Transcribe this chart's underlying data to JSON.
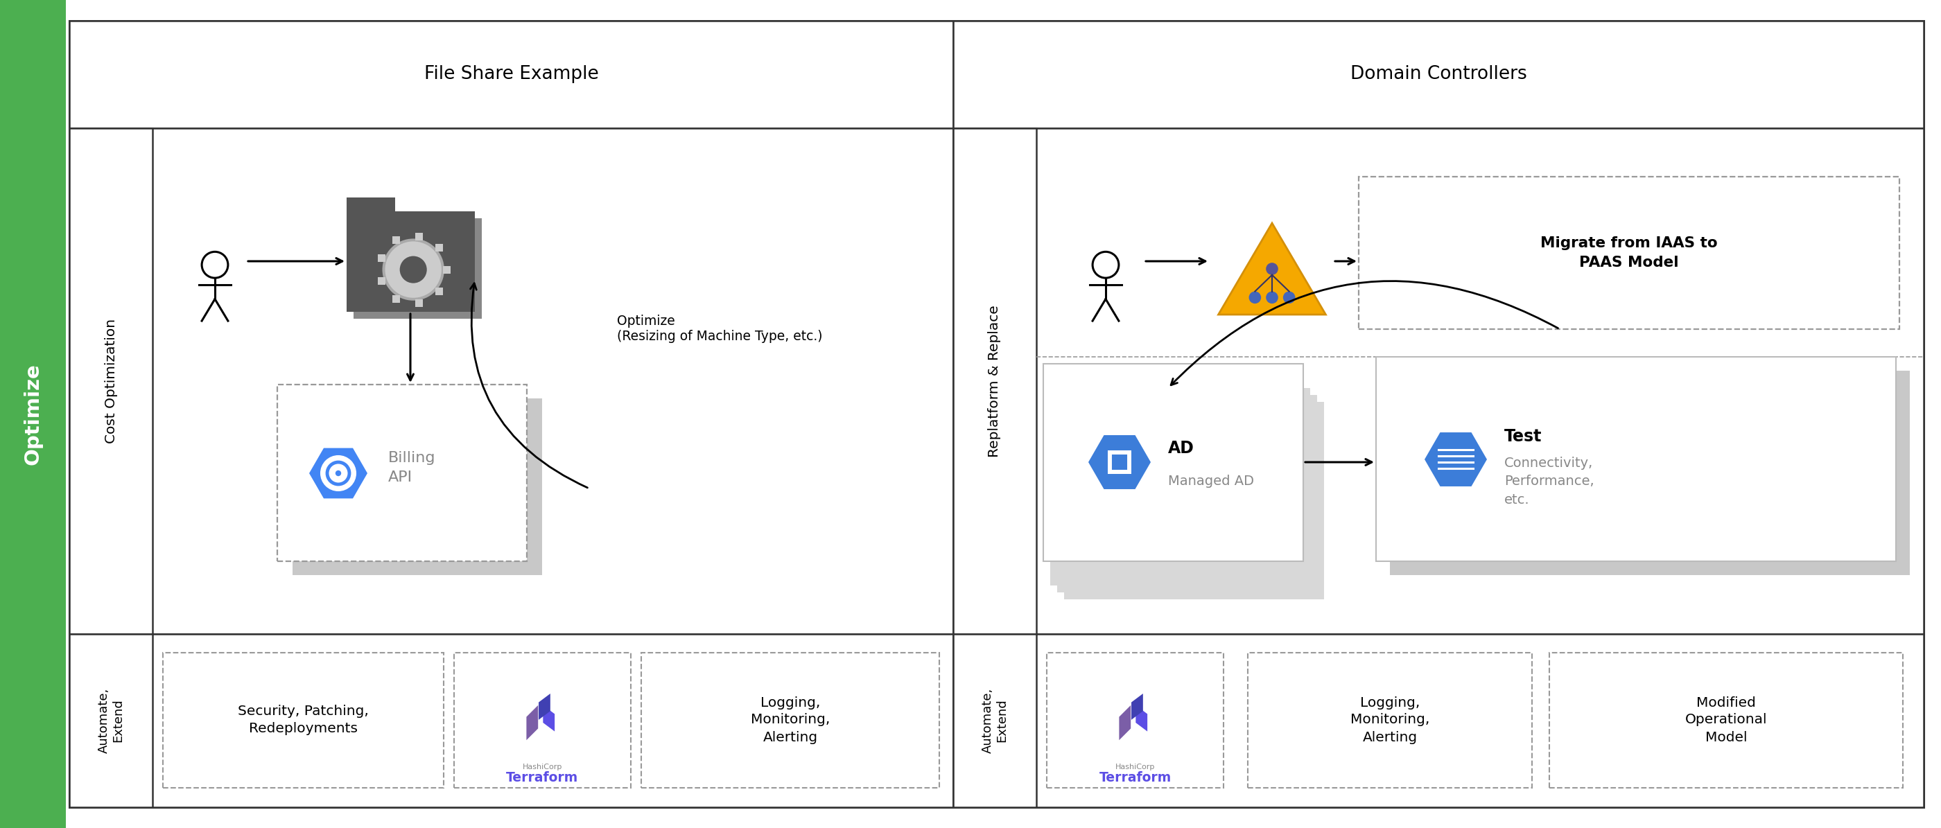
{
  "bg_color": "#ffffff",
  "green_bar_color": "#4caf50",
  "green_bar_text": "Optimize",
  "line_color": "#333333",
  "dashed_color": "#999999",
  "file_share_title": "File Share Example",
  "domain_ctrl_title": "Domain Controllers",
  "cost_opt_label": "Cost Optimization",
  "replatform_label": "Replatform & Replace",
  "automate_extend_label": "Automate,\nExtend",
  "optimize_label": "Optimize\n(Resizing of Machine Type, etc.)",
  "billing_api_text": "Billing\nAPI",
  "migrate_text": "Migrate from IAAS to\nPAAS Model",
  "ad_label": "AD",
  "managed_ad_label": "Managed AD",
  "test_label": "Test",
  "test_sub": "Connectivity,\nPerformance,\netc.",
  "security_text": "Security, Patching,\nRedeployments",
  "logging_text1": "Logging,\nMonitoring,\nAlerting",
  "logging_text2": "Logging,\nMonitoring,\nAlerting",
  "modified_text": "Modified\nOperational\nModel",
  "terraform_text": "Terraform",
  "hashicorp_text": "HashiCorp",
  "blue_hex_color": "#4285f4",
  "blue_hex2_color": "#3c7dd9",
  "orange_tri_color": "#f5a800",
  "orange_tri_edge": "#d4900a",
  "purple_color": "#7b5ea7",
  "gray_shadow": "#c8c8c8",
  "card_border": "#bbbbbb",
  "folder_dark": "#555555",
  "folder_shadow": "#888888"
}
